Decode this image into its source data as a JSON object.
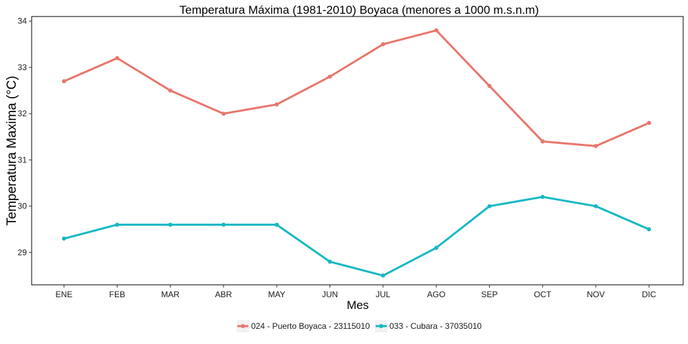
{
  "chart_data": {
    "type": "line",
    "title": "Temperatura Máxima (1981-2010) Boyaca (menores a 1000 m.s.n.m)",
    "xlabel": "Mes",
    "ylabel": "Temperatura Maxima (°C)",
    "categories": [
      "ENE",
      "FEB",
      "MAR",
      "ABR",
      "MAY",
      "JUN",
      "JUL",
      "AGO",
      "SEP",
      "OCT",
      "NOV",
      "DIC"
    ],
    "ylim": [
      28.3,
      34.1
    ],
    "yticks": [
      "29",
      "30",
      "31",
      "32",
      "33",
      "34"
    ],
    "grid": false,
    "legend_position": "bottom",
    "series": [
      {
        "name": "024 - Puerto Boyaca - 23115010",
        "color": "#E8766D",
        "values": [
          32.7,
          33.2,
          32.5,
          32.0,
          32.2,
          32.8,
          33.5,
          33.8,
          32.6,
          31.4,
          31.3,
          31.8
        ]
      },
      {
        "name": "033 - Cubara - 37035010",
        "color": "#16B8C4",
        "values": [
          29.3,
          29.6,
          29.6,
          29.6,
          29.6,
          28.8,
          28.5,
          29.1,
          30.0,
          30.2,
          30.0,
          29.5
        ]
      }
    ]
  }
}
